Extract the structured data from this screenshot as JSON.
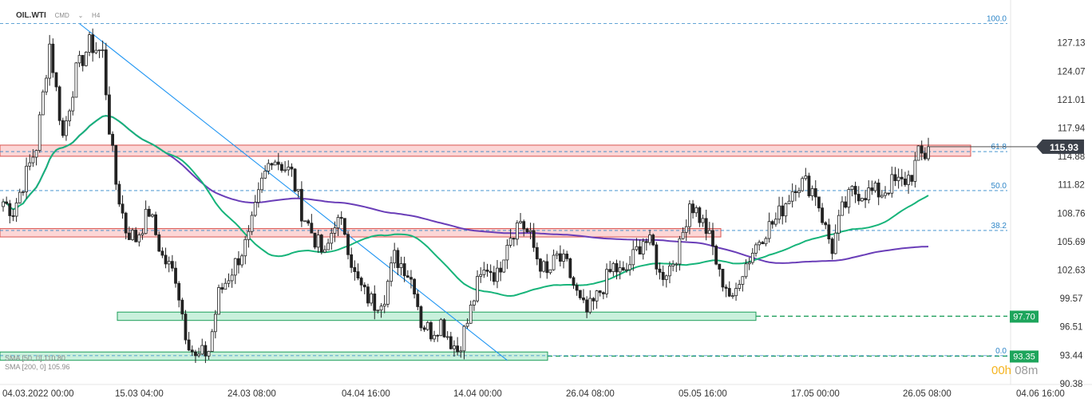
{
  "header": {
    "symbol": "OIL.WTI",
    "sub1": "CMD",
    "sub2": "H4"
  },
  "price_label": "115.93",
  "countdown": {
    "a": "00h",
    "b": "08m"
  },
  "sma_legend": [
    "SMA [50, 0] 110.80",
    "SMA [200, 0] 105.96"
  ],
  "colors": {
    "sma50": "#17b47a",
    "sma200": "#6a3eb8",
    "trendline": "#2196f3",
    "fib": "#2e86c8",
    "resistance": "#d9534f",
    "support": "#1e9e5a",
    "candle": "#222222"
  },
  "chart_data": {
    "type": "candlestick",
    "symbol": "OIL.WTI",
    "timeframe": "H4",
    "ylim": [
      90.38,
      130.2
    ],
    "y_ticks": [
      "127.13",
      "124.07",
      "121.01",
      "117.94",
      "114.88",
      "111.82",
      "108.76",
      "105.69",
      "102.63",
      "99.57",
      "96.51",
      "93.44",
      "90.38"
    ],
    "x_ticks": [
      "04.03.2022  00:00",
      "15.03  04:00",
      "24.03  08:00",
      "04.04  16:00",
      "14.04  00:00",
      "26.04  08:00",
      "05.05  16:00",
      "17.05  00:00",
      "26.05  08:00",
      "04.06  16:00"
    ],
    "fib_levels": [
      {
        "label": "100.0",
        "price": 129.2
      },
      {
        "label": "61.8",
        "price": 115.4
      },
      {
        "label": "50.0",
        "price": 111.2
      },
      {
        "label": "38.2",
        "price": 106.9
      },
      {
        "label": "0.0",
        "price": 93.4
      }
    ],
    "zones": [
      {
        "kind": "resistance",
        "low": 114.9,
        "high": 116.1
      },
      {
        "kind": "resistance",
        "low": 106.2,
        "high": 107.1
      },
      {
        "kind": "support",
        "low": 97.2,
        "high": 98.1,
        "label": "97.70"
      },
      {
        "kind": "support",
        "low": 92.9,
        "high": 93.8,
        "label": "93.35"
      }
    ],
    "last_price": 115.93,
    "close_path": [
      [
        0,
        110
      ],
      [
        3,
        109
      ],
      [
        7,
        113
      ],
      [
        10,
        116
      ],
      [
        14,
        127
      ],
      [
        18,
        117
      ],
      [
        22,
        124
      ],
      [
        26,
        127
      ],
      [
        30,
        126
      ],
      [
        32,
        118
      ],
      [
        34,
        112
      ],
      [
        37,
        107
      ],
      [
        40,
        106
      ],
      [
        44,
        109
      ],
      [
        48,
        104
      ],
      [
        52,
        102
      ],
      [
        55,
        96
      ],
      [
        58,
        93
      ],
      [
        62,
        94
      ],
      [
        65,
        100
      ],
      [
        68,
        102
      ],
      [
        71,
        104
      ],
      [
        74,
        106
      ],
      [
        76,
        109
      ],
      [
        78,
        112
      ],
      [
        81,
        115
      ],
      [
        84,
        114
      ],
      [
        87,
        113
      ],
      [
        90,
        109
      ],
      [
        94,
        106
      ],
      [
        97,
        104
      ],
      [
        100,
        108
      ],
      [
        103,
        107
      ],
      [
        106,
        102
      ],
      [
        109,
        100
      ],
      [
        112,
        99
      ],
      [
        115,
        100
      ],
      [
        118,
        104
      ],
      [
        121,
        103
      ],
      [
        124,
        101
      ],
      [
        126,
        97
      ],
      [
        129,
        96
      ],
      [
        132,
        97
      ],
      [
        135,
        95
      ],
      [
        137,
        94
      ],
      [
        140,
        97
      ],
      [
        143,
        101
      ],
      [
        146,
        103
      ],
      [
        149,
        102
      ],
      [
        152,
        106
      ],
      [
        156,
        108
      ],
      [
        159,
        106
      ],
      [
        161,
        104
      ],
      [
        164,
        102
      ],
      [
        167,
        104
      ],
      [
        170,
        103
      ],
      [
        172,
        101
      ],
      [
        174,
        99
      ],
      [
        176,
        98
      ],
      [
        178,
        99
      ],
      [
        181,
        101
      ],
      [
        184,
        103
      ],
      [
        187,
        102
      ],
      [
        190,
        104
      ],
      [
        193,
        106
      ],
      [
        196,
        105
      ],
      [
        198,
        102
      ],
      [
        201,
        103
      ],
      [
        204,
        105
      ],
      [
        207,
        110
      ],
      [
        209,
        109
      ],
      [
        212,
        107
      ],
      [
        214,
        105
      ],
      [
        216,
        102
      ],
      [
        218,
        101
      ],
      [
        220,
        99
      ],
      [
        222,
        102
      ],
      [
        225,
        104
      ],
      [
        228,
        106
      ],
      [
        230,
        107
      ],
      [
        233,
        108
      ],
      [
        236,
        110
      ],
      [
        239,
        112
      ],
      [
        242,
        112
      ],
      [
        245,
        111
      ],
      [
        248,
        107
      ],
      [
        250,
        105
      ],
      [
        253,
        109
      ],
      [
        256,
        111
      ],
      [
        259,
        111
      ],
      [
        262,
        111
      ],
      [
        265,
        111
      ],
      [
        268,
        112
      ],
      [
        271,
        112
      ],
      [
        274,
        113
      ],
      [
        276,
        115
      ],
      [
        278,
        115
      ]
    ]
  }
}
